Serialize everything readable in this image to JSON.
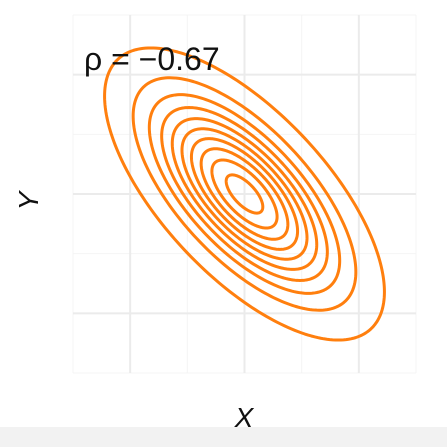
{
  "chart_data": {
    "type": "contour",
    "annotation": "ρ = −0.67",
    "xlabel": "X",
    "ylabel": "Y",
    "x_ticks": [],
    "y_ticks": [],
    "grid": true,
    "legend": "none",
    "distribution": {
      "kind": "bivariate-normal",
      "mean": [
        0,
        0
      ],
      "sd": [
        1,
        1
      ],
      "rho": -0.67
    },
    "contour_density_fractions": [
      0.05,
      0.15,
      0.25,
      0.35,
      0.45,
      0.55,
      0.65,
      0.75,
      0.85,
      0.95
    ],
    "xlim": [
      -3,
      3
    ],
    "ylim": [
      -3,
      3
    ],
    "colors": {
      "contour": "#ff7f0e",
      "grid_major": "#ebebeb",
      "grid_minor": "#f4f4f4",
      "panel_background": "#ffffff",
      "footer_strip": "#f2f2f2"
    }
  }
}
